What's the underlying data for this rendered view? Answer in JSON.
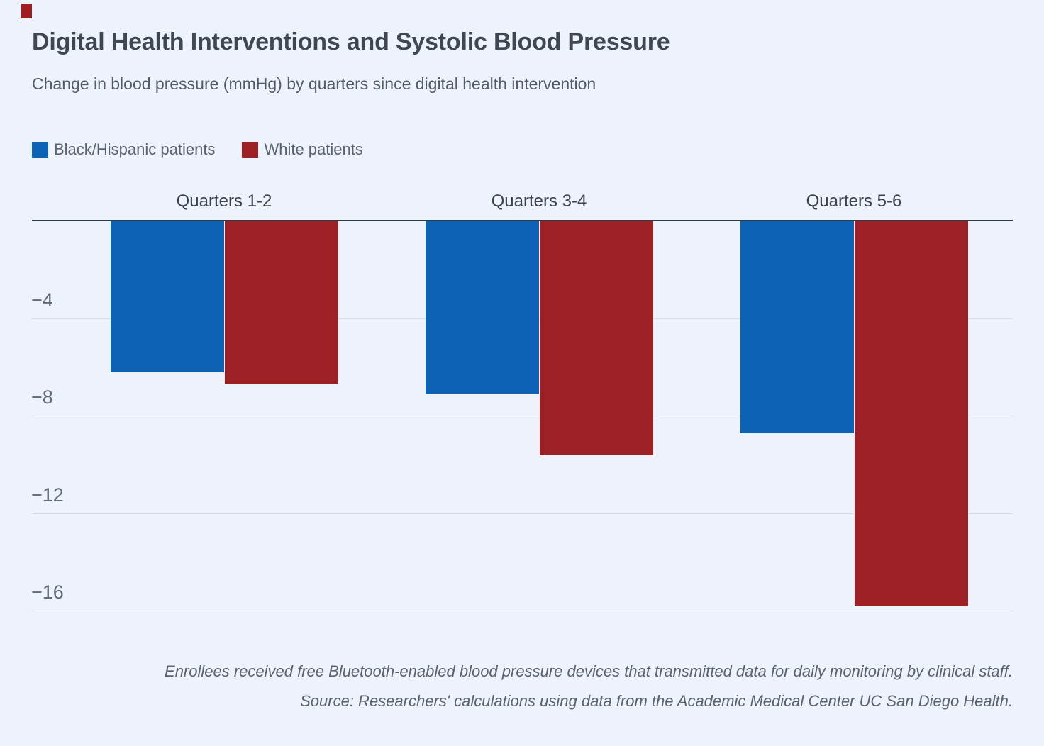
{
  "page": {
    "background_color": "#edf2fb",
    "brand_mark_color": "#a01d22"
  },
  "header": {
    "title": "Digital Health Interventions and Systolic Blood Pressure",
    "subtitle": "Change in blood pressure (mmHg) by quarters since digital health intervention"
  },
  "legend": {
    "items": [
      {
        "label": "Black/Hispanic patients",
        "color": "#0c63b6"
      },
      {
        "label": "White patients",
        "color": "#9c2026"
      }
    ]
  },
  "chart_data": {
    "type": "bar",
    "orientation": "vertical",
    "title": "Digital Health Interventions and Systolic Blood Pressure",
    "subtitle": "Change in blood pressure (mmHg) by quarters since digital health intervention",
    "ylabel": "Change in blood pressure (mmHg)",
    "categories": [
      "Quarters 1-2",
      "Quarters 3-4",
      "Quarters 5-6"
    ],
    "series": [
      {
        "name": "Black/Hispanic patients",
        "color": "#0c63b6",
        "values": [
          -6.2,
          -7.1,
          -8.7
        ]
      },
      {
        "name": "White patients",
        "color": "#9c2026",
        "values": [
          -6.7,
          -9.6,
          -15.8
        ]
      }
    ],
    "baseline_value": 0,
    "ylim": [
      -17.5,
      0
    ],
    "yticks": [
      -4,
      -8,
      -12,
      -16
    ],
    "ytick_labels": [
      "−4",
      "−8",
      "−12",
      "−16"
    ],
    "grid": true,
    "legend_position": "top-left",
    "category_label_position": "above-baseline"
  },
  "notes": {
    "line1": "Enrollees received free Bluetooth-enabled blood pressure devices that transmitted data for daily monitoring by clinical staff.",
    "line2": "Source: Researchers' calculations using data from the Academic Medical Center UC San Diego Health."
  }
}
